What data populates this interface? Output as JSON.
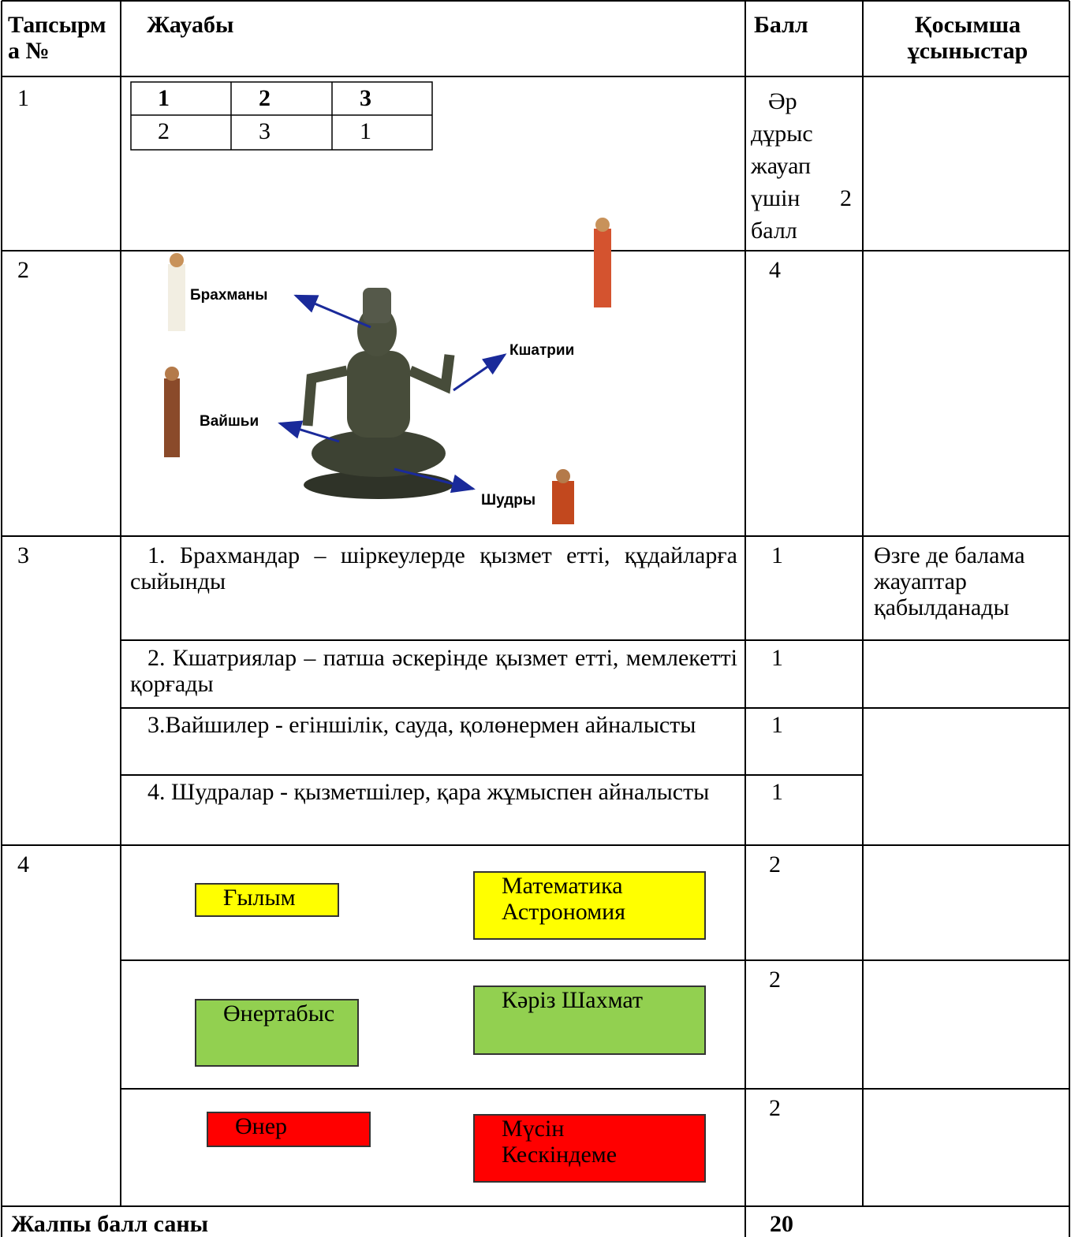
{
  "table": {
    "header": {
      "task": "Тапсырма №",
      "answer": "Жауабы",
      "score": "Балл",
      "notes": "Қосымша ұсыныстар"
    },
    "rows": [
      {
        "task": "1",
        "matching": {
          "head": [
            "1",
            "2",
            "3"
          ],
          "answers": [
            "2",
            "3",
            "1"
          ]
        },
        "score": "Әр дұрыс жауап үшін 2 балл"
      },
      {
        "task": "2",
        "diagram": {
          "labels": [
            "Брахманы",
            "Кшатрии",
            "Вайшьи",
            "Шудры"
          ]
        },
        "score": "4"
      },
      {
        "task": "3",
        "items": [
          {
            "text": "1. Брахмандар – шіркеулерде қызмет етті, құдайларға сыйынды",
            "score": "1",
            "note": "Өзге де балама жауаптар қабылданады"
          },
          {
            "text": "2. Кшатриялар – патша әскерінде қызмет етті, мемлекетті қорғады",
            "score": "1"
          },
          {
            "text": "3.Вайшилер - егіншілік, сауда, қолөнермен айналысты",
            "score": "1"
          },
          {
            "text": "4. Шудралар - қызметшілер, қара жұмыспен айналысты",
            "score": "1"
          }
        ]
      },
      {
        "task": "4",
        "pairs": [
          {
            "field": "Ғылым",
            "examples": "Математика Астрономия",
            "score": "2",
            "color": "#ffff00"
          },
          {
            "field": "Өнертабыс",
            "examples": "Кәріз Шахмат",
            "score": "2",
            "color": "#92d050"
          },
          {
            "field": "Өнер",
            "examples": "Мүсін Кескіндеме",
            "score": "2",
            "color": "#ff0000"
          }
        ]
      }
    ],
    "total": {
      "label": "Жалпы балл саны",
      "score": "20"
    }
  }
}
